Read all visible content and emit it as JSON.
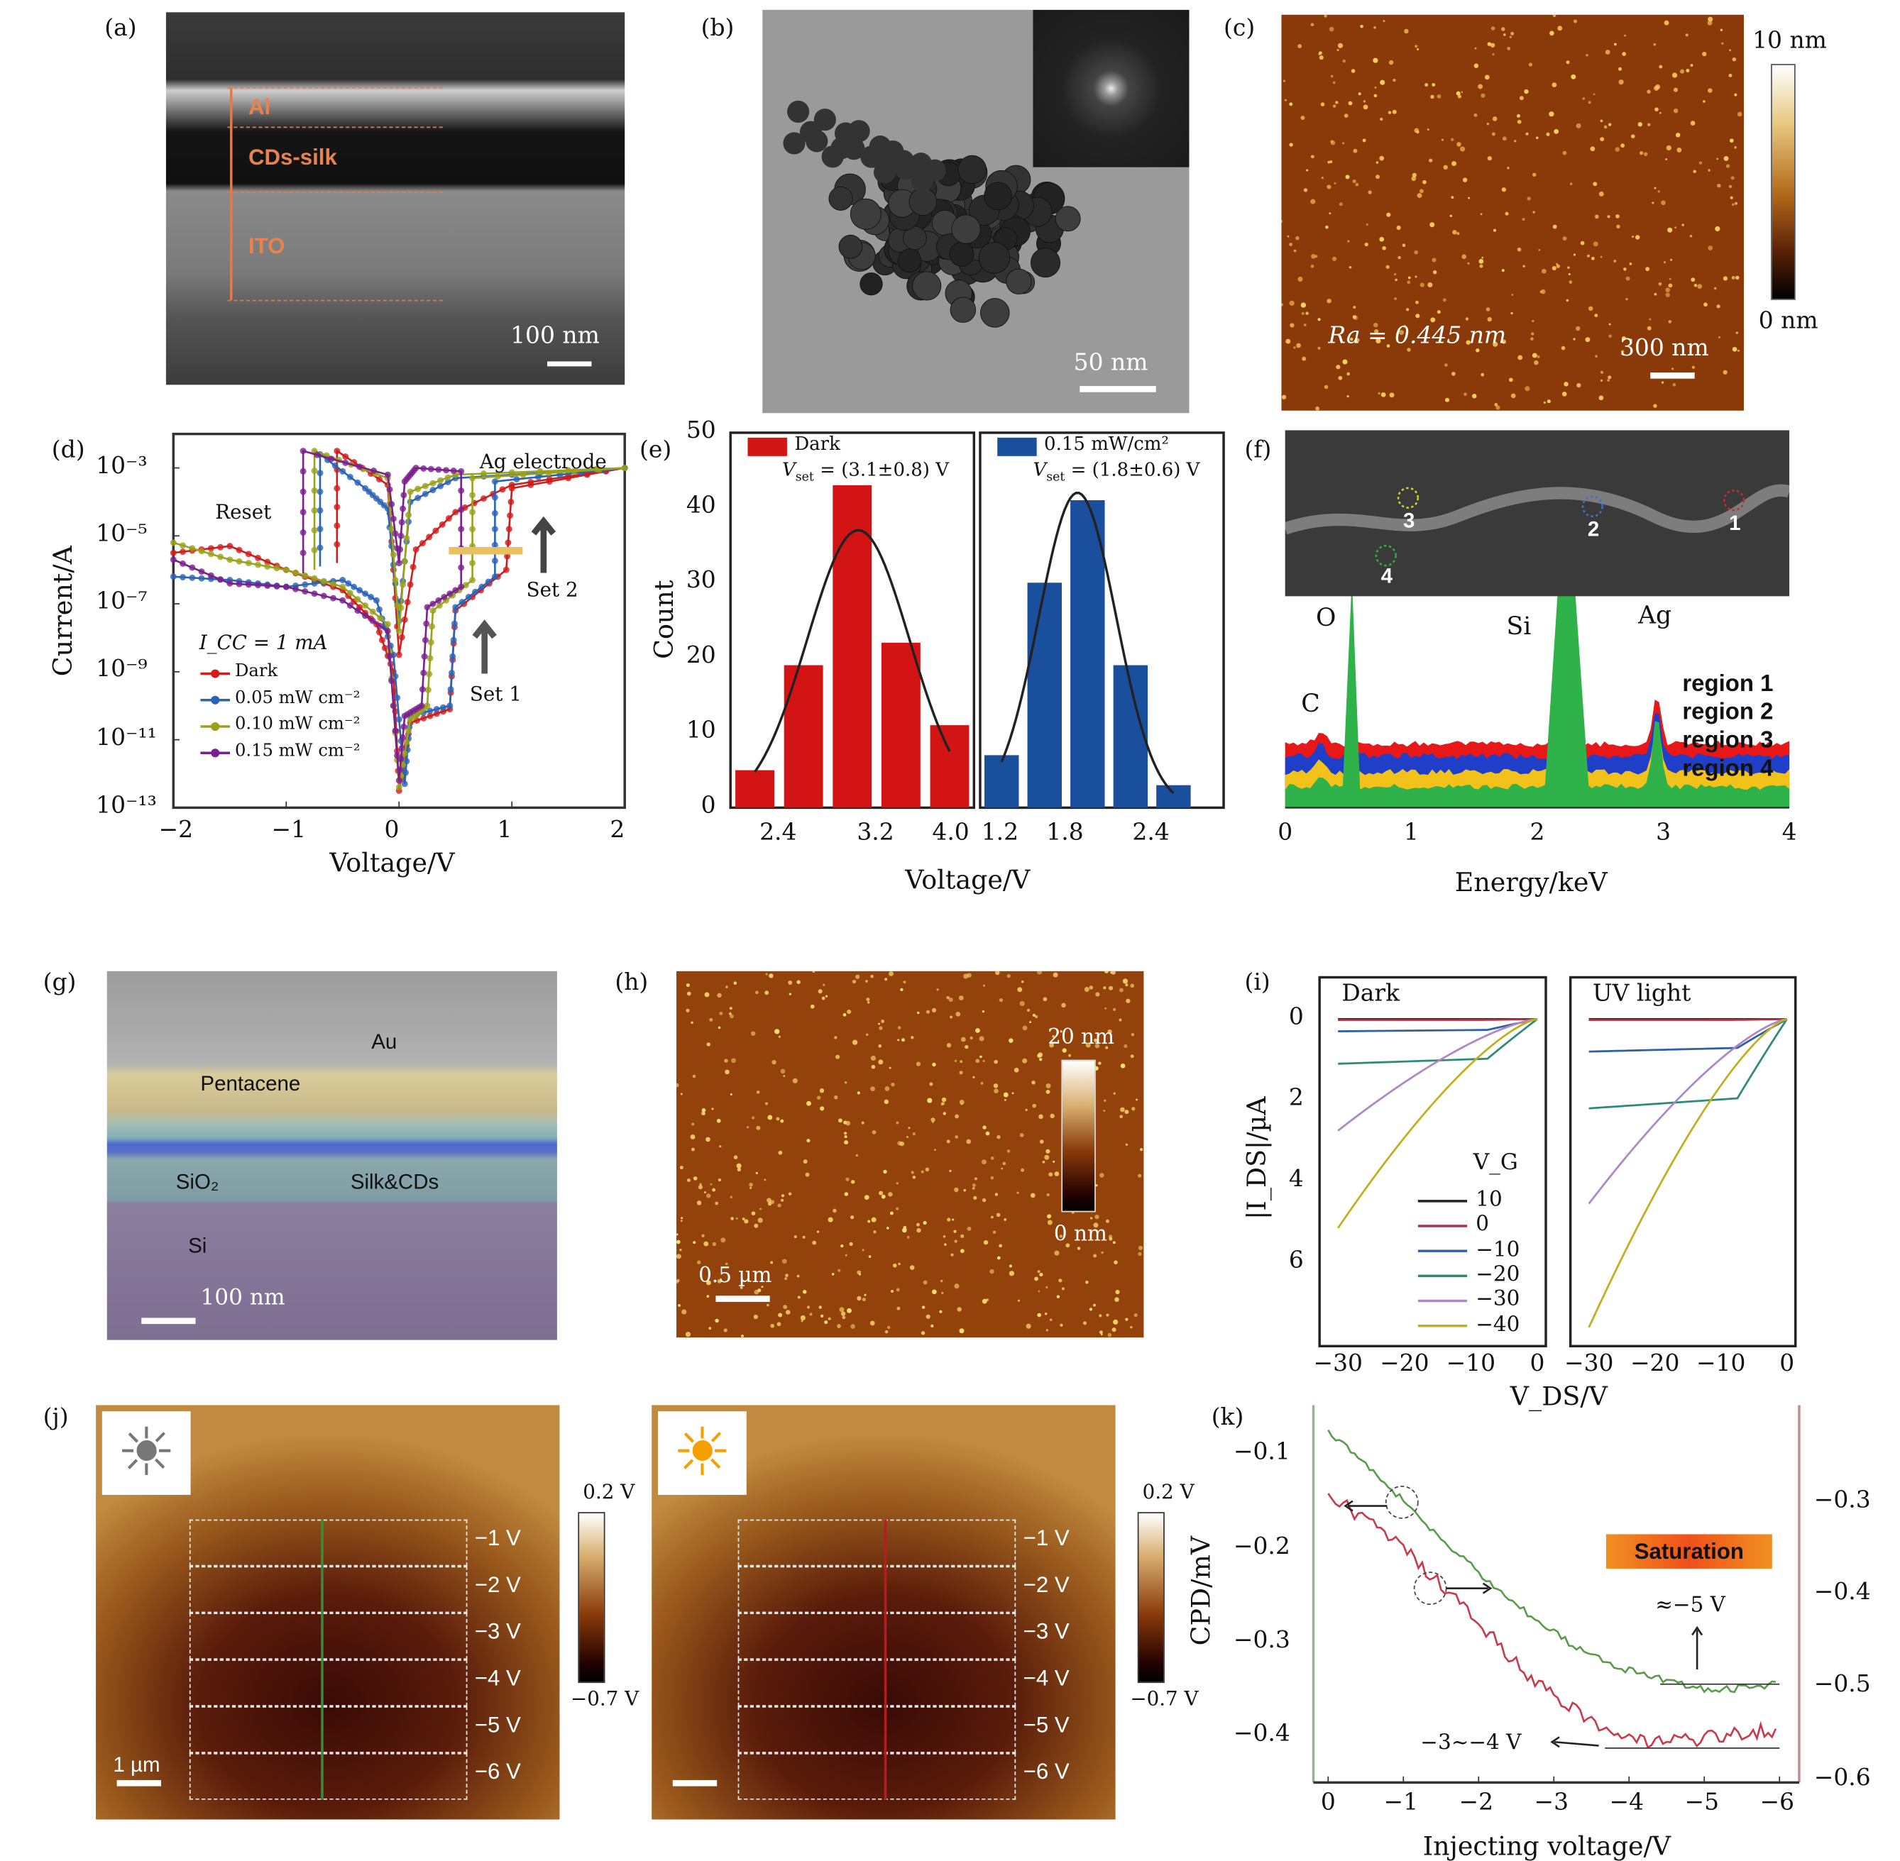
{
  "panels": {
    "a": {
      "label": "(a)",
      "layers": [
        "Al",
        "CDs-silk",
        "ITO"
      ],
      "scale": "100 nm"
    },
    "b": {
      "label": "(b)",
      "scale": "50 nm"
    },
    "c": {
      "label": "(c)",
      "roughness": "Ra = 0.445 nm",
      "scale": "300 nm",
      "cb_max": "10 nm",
      "cb_min": "0 nm"
    },
    "g": {
      "label": "(g)",
      "layers": [
        "Au",
        "Pentacene",
        "SiO₂",
        "Silk&CDs",
        "Si"
      ],
      "scale": "100 nm"
    },
    "h": {
      "label": "(h)",
      "scale": "0.5 µm",
      "cb_max": "20 nm",
      "cb_min": "0 nm"
    },
    "j": {
      "label": "(j)",
      "scale": "1 µm",
      "cb_max": "0.2 V",
      "cb_min": "−0.7 V",
      "rows": [
        "−1 V",
        "−2 V",
        "−3 V",
        "−4 V",
        "−5 V",
        "−6 V"
      ],
      "icons": [
        "dark-sun-icon",
        "bright-sun-icon"
      ]
    }
  },
  "colors": {
    "red": "#d01c1c",
    "blue": "#1f4f9c",
    "green": "#2fb24a",
    "olive": "#9aa21c",
    "purple": "#7b1f8c"
  },
  "chart_data": [
    {
      "id": "d",
      "label": "(d)",
      "type": "line",
      "xlabel": "Voltage/V",
      "ylabel": "Current/A",
      "xlim": [
        -2,
        2
      ],
      "ylim_log10": [
        -13,
        -2
      ],
      "yscale": "log",
      "xticks": [
        "−2",
        "−1",
        "0",
        "1",
        "2"
      ],
      "xtick_values": [
        -2,
        -1,
        0,
        1,
        2
      ],
      "yticks": [
        "10⁻³",
        "10⁻⁵",
        "10⁻⁷",
        "10⁻⁹",
        "10⁻¹¹",
        "10⁻¹³"
      ],
      "ytick_values": [
        -3,
        -5,
        -7,
        -9,
        -11,
        -13
      ],
      "annotations": [
        "Ag electrode",
        "Reset",
        "Set 2",
        "Set 1",
        "I_CC = 1 mA"
      ],
      "legend": "bottom-left",
      "series": [
        {
          "name": "Dark",
          "color": "#d01c1c",
          "points": [
            [
              -2,
              -5.5
            ],
            [
              -1.5,
              -5.3
            ],
            [
              -1,
              -6
            ],
            [
              -0.5,
              -6.6
            ],
            [
              -0.2,
              -7.6
            ],
            [
              -0.05,
              -9
            ],
            [
              0,
              -12.5
            ],
            [
              0.1,
              -10.5
            ],
            [
              0.45,
              -10.1
            ],
            [
              0.5,
              -7.2
            ],
            [
              0.95,
              -6.0
            ],
            [
              1.0,
              -3.6
            ],
            [
              2,
              -3
            ],
            [
              1,
              -3.5
            ],
            [
              0.5,
              -4.3
            ],
            [
              0.15,
              -5.4
            ],
            [
              0,
              -8.5
            ],
            [
              -0.1,
              -3.5
            ],
            [
              -0.55,
              -2.5
            ],
            [
              -0.55,
              -5.8
            ]
          ]
        },
        {
          "name": "0.05 mW cm⁻²",
          "color": "#2a63b5",
          "points": [
            [
              -2,
              -6.2
            ],
            [
              -1.5,
              -6.3
            ],
            [
              -1,
              -6.5
            ],
            [
              -0.5,
              -6.3
            ],
            [
              -0.2,
              -6.9
            ],
            [
              -0.05,
              -8.5
            ],
            [
              0.05,
              -12.3
            ],
            [
              0.1,
              -10.3
            ],
            [
              0.45,
              -10
            ],
            [
              0.5,
              -7.1
            ],
            [
              0.85,
              -6.2
            ],
            [
              0.85,
              -3.4
            ],
            [
              2,
              -3
            ],
            [
              0.5,
              -3.3
            ],
            [
              0.1,
              -4.0
            ],
            [
              0,
              -7.5
            ],
            [
              -0.1,
              -4.2
            ],
            [
              -0.3,
              -3.6
            ],
            [
              -0.7,
              -2.6
            ],
            [
              -0.7,
              -5.9
            ]
          ]
        },
        {
          "name": "0.10 mW cm⁻²",
          "color": "#9aa21c",
          "points": [
            [
              -2,
              -5.2
            ],
            [
              -1.5,
              -5.7
            ],
            [
              -1,
              -6
            ],
            [
              -0.5,
              -6.5
            ],
            [
              -0.1,
              -7.6
            ],
            [
              0,
              -12.4
            ],
            [
              0.1,
              -10.4
            ],
            [
              0.25,
              -10
            ],
            [
              0.3,
              -7.2
            ],
            [
              0.65,
              -6.3
            ],
            [
              0.65,
              -3.3
            ],
            [
              2,
              -3
            ],
            [
              0.5,
              -3.2
            ],
            [
              0.1,
              -3.7
            ],
            [
              0,
              -7.8
            ],
            [
              -0.1,
              -3.3
            ],
            [
              -0.75,
              -2.5
            ],
            [
              -0.75,
              -6.0
            ]
          ]
        },
        {
          "name": "0.15 mW cm⁻²",
          "color": "#7b1f8c",
          "points": [
            [
              -2,
              -5.7
            ],
            [
              -1.5,
              -6.4
            ],
            [
              -1,
              -6.5
            ],
            [
              -0.5,
              -6.9
            ],
            [
              -0.1,
              -7.8
            ],
            [
              0,
              -12.2
            ],
            [
              0.05,
              -10.3
            ],
            [
              0.2,
              -10
            ],
            [
              0.25,
              -7.1
            ],
            [
              0.55,
              -6.5
            ],
            [
              0.55,
              -3.1
            ],
            [
              0.15,
              -3
            ],
            [
              0.05,
              -3.4
            ],
            [
              0,
              -5.8
            ],
            [
              -0.1,
              -3.2
            ],
            [
              -0.85,
              -2.5
            ],
            [
              -0.85,
              -6.1
            ]
          ]
        }
      ]
    },
    {
      "id": "e",
      "label": "(e)",
      "type": "bar",
      "xlabel": "Voltage/V",
      "ylabel": "Count",
      "ylim": [
        0,
        50
      ],
      "yticks": [
        "0",
        "10",
        "20",
        "30",
        "40",
        "50"
      ],
      "ytick_values": [
        0,
        10,
        20,
        30,
        40,
        50
      ],
      "subplots": [
        {
          "name": "Dark",
          "legend": "Dark",
          "stat": "(3.1±0.8) V",
          "stat_prefix": "V",
          "stat_sub": "set",
          "color": "#d21414",
          "xlim": [
            2.0,
            4.0
          ],
          "xticks": [
            "2.4",
            "3.2",
            "4.0"
          ],
          "xtick_values": [
            2.4,
            3.2,
            4.0
          ],
          "bin_centers": [
            2.2,
            2.6,
            3.0,
            3.4,
            3.8
          ],
          "values": [
            5,
            19,
            43,
            22,
            11
          ],
          "fit_mean": 3.05,
          "fit_sigma": 0.42,
          "fit_peak": 37
        },
        {
          "name": "0.15 mW/cm²",
          "legend": "0.15 mW/cm²",
          "stat": "(1.8±0.6) V",
          "stat_prefix": "V",
          "stat_sub": "set",
          "color": "#1a4f9e",
          "xlim": [
            1.2,
            2.9
          ],
          "xticks": [
            "1.2",
            "1.8",
            "2.4"
          ],
          "xtick_values": [
            1.2,
            1.8,
            2.4
          ],
          "bin_centers": [
            1.35,
            1.65,
            1.95,
            2.25,
            2.55
          ],
          "values": [
            7,
            30,
            41,
            19,
            3
          ],
          "fit_mean": 1.88,
          "fit_sigma": 0.27,
          "fit_peak": 42
        }
      ]
    },
    {
      "id": "f",
      "label": "(f)",
      "type": "area",
      "xlabel": "Energy/keV",
      "xlim": [
        0,
        4
      ],
      "xticks": [
        "0",
        "1",
        "2",
        "3",
        "4"
      ],
      "xtick_values": [
        0,
        1,
        2,
        3,
        4
      ],
      "peaks": [
        {
          "label": "C",
          "energy": 0.28
        },
        {
          "label": "O",
          "energy": 0.53
        },
        {
          "label": "Si",
          "energy": 2.2
        },
        {
          "label": "Ag",
          "energy": 2.95
        }
      ],
      "sem_markers": [
        "1",
        "2",
        "3",
        "4"
      ],
      "series": [
        {
          "name": "region 1",
          "color": "#e81818"
        },
        {
          "name": "region 2",
          "color": "#1f3fc8"
        },
        {
          "name": "region 3",
          "color": "#f2c21a"
        },
        {
          "name": "region 4",
          "color": "#2fb24a"
        }
      ]
    },
    {
      "id": "i",
      "label": "(i)",
      "type": "line",
      "xlabel": "V_DS/V",
      "ylabel": "|I_DS|/µA",
      "xlim": [
        -31,
        0
      ],
      "ylim": [
        0,
        7.8
      ],
      "y_inverted": true,
      "yticks": [
        "0",
        "2",
        "4",
        "6"
      ],
      "ytick_values": [
        0,
        2,
        4,
        6
      ],
      "xticks": [
        "−30",
        "−20",
        "−10",
        "0"
      ],
      "xtick_values": [
        -30,
        -20,
        -10,
        0
      ],
      "legend_title": "V_G",
      "subplots": [
        {
          "title": "Dark",
          "series": [
            {
              "name": "10",
              "color": "#222222",
              "i_at_minus30": 0.0
            },
            {
              "name": "0",
              "color": "#b0304a",
              "i_at_minus30": 0.02
            },
            {
              "name": "−10",
              "color": "#2e5fa8",
              "i_at_minus30": 0.3
            },
            {
              "name": "−20",
              "color": "#2e8a78",
              "i_at_minus30": 1.1
            },
            {
              "name": "−30",
              "color": "#b088c0",
              "i_at_minus30": 2.75
            },
            {
              "name": "−40",
              "color": "#c0b020",
              "i_at_minus30": 5.15
            }
          ]
        },
        {
          "title": "UV light",
          "series": [
            {
              "name": "10",
              "color": "#222222",
              "i_at_minus30": 0.0
            },
            {
              "name": "0",
              "color": "#b0304a",
              "i_at_minus30": 0.02
            },
            {
              "name": "−10",
              "color": "#2e5fa8",
              "i_at_minus30": 0.8
            },
            {
              "name": "−20",
              "color": "#2e8a78",
              "i_at_minus30": 2.2
            },
            {
              "name": "−30",
              "color": "#b088c0",
              "i_at_minus30": 4.55
            },
            {
              "name": "−40",
              "color": "#c0b020",
              "i_at_minus30": 7.6
            }
          ]
        }
      ]
    },
    {
      "id": "k",
      "label": "(k)",
      "type": "line",
      "xlabel": "Injecting voltage/V",
      "ylabel": "CPD/mV",
      "xlim": [
        0,
        -6
      ],
      "ylim_left": [
        -0.047,
        -0.45
      ],
      "ylim_right": [
        -0.195,
        -0.603
      ],
      "xticks": [
        "0",
        "−1",
        "−2",
        "−3",
        "−4",
        "−5",
        "−6"
      ],
      "xtick_values": [
        0,
        -1,
        -2,
        -3,
        -4,
        -5,
        -6
      ],
      "yticks_left": [
        "−0.1",
        "−0.2",
        "−0.3",
        "−0.4"
      ],
      "ytick_values_left": [
        -0.1,
        -0.2,
        -0.3,
        -0.4
      ],
      "yticks_right": [
        "−0.3",
        "−0.4",
        "−0.5",
        "−0.6"
      ],
      "ytick_values_right": [
        -0.3,
        -0.4,
        -0.5,
        -0.6
      ],
      "annotations": [
        "Saturation",
        "≈−5 V",
        "−3~−4 V"
      ],
      "series": [
        {
          "name": "CPD (left axis)",
          "axis": "left",
          "color": "#5a9a4a",
          "x": [
            0,
            -0.5,
            -1,
            -1.5,
            -2,
            -2.5,
            -3,
            -3.5,
            -4,
            -4.5,
            -5,
            -5.5,
            -6
          ],
          "y": [
            -0.077,
            -0.11,
            -0.15,
            -0.19,
            -0.225,
            -0.26,
            -0.29,
            -0.315,
            -0.33,
            -0.34,
            -0.35,
            -0.35,
            -0.345
          ]
        },
        {
          "name": "CPD (right axis)",
          "axis": "right",
          "color": "#c83a4a",
          "x": [
            0,
            -0.5,
            -1,
            -1.5,
            -2,
            -2.5,
            -3,
            -3.5,
            -4,
            -4.5,
            -5,
            -5.5,
            -6
          ],
          "y": [
            -0.29,
            -0.32,
            -0.35,
            -0.39,
            -0.43,
            -0.475,
            -0.51,
            -0.535,
            -0.555,
            -0.56,
            -0.555,
            -0.55,
            -0.545
          ]
        }
      ]
    }
  ]
}
